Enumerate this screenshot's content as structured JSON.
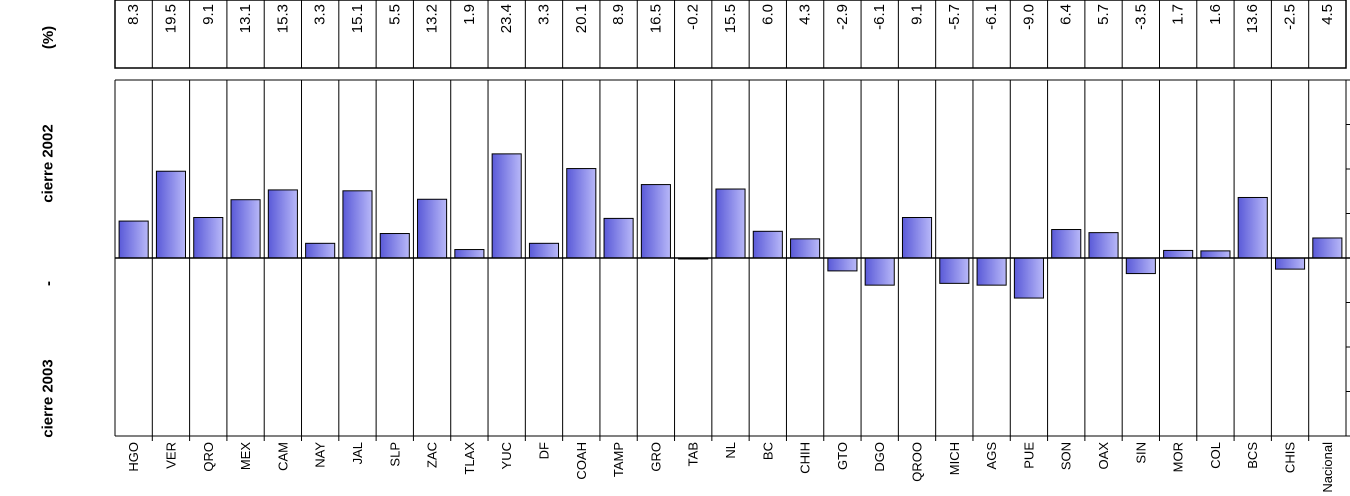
{
  "side_title": {
    "unit": "(%)",
    "top_text": "cierre 2002",
    "separator": "-",
    "bottom_text": "cierre 2003"
  },
  "chart_data": {
    "type": "bar",
    "title": "",
    "xlabel": "",
    "ylabel": "",
    "grid": false,
    "legend": "none",
    "bar_color": "#8888e8",
    "bar_edge_color": "#000000",
    "ylim": [
      -40,
      40
    ],
    "categories": [
      "HGO",
      "VER",
      "QRO",
      "MEX",
      "CAM",
      "NAY",
      "JAL",
      "SLP",
      "ZAC",
      "TLAX",
      "YUC",
      "DF",
      "COAH",
      "TAMP",
      "GRO",
      "TAB",
      "NL",
      "BC",
      "CHIH",
      "GTO",
      "DGO",
      "QROO",
      "MICH",
      "AGS",
      "PUE",
      "SON",
      "OAX",
      "SIN",
      "MOR",
      "COL",
      "BCS",
      "CHIS",
      "Nacional"
    ],
    "values": [
      8.3,
      19.5,
      9.1,
      13.1,
      15.3,
      3.3,
      15.1,
      5.5,
      13.2,
      1.9,
      23.4,
      3.3,
      20.1,
      8.9,
      16.5,
      -0.2,
      15.5,
      6.0,
      4.3,
      -2.9,
      -6.1,
      9.1,
      -5.7,
      -6.1,
      -9.0,
      6.4,
      5.7,
      -3.5,
      1.7,
      1.6,
      13.6,
      -2.5,
      4.5
    ],
    "value_labels": [
      "8.3",
      "19.5",
      "9.1",
      "13.1",
      "15.3",
      "3.3",
      "15.1",
      "5.5",
      "13.2",
      "1.9",
      "23.4",
      "3.3",
      "20.1",
      "8.9",
      "16.5",
      "-0.2",
      "15.5",
      "6.0",
      "4.3",
      "-2.9",
      "-6.1",
      "9.1",
      "-5.7",
      "-6.1",
      "-9.0",
      "6.4",
      "5.7",
      "-3.5",
      "1.7",
      "1.6",
      "13.6",
      "-2.5",
      "4.5"
    ]
  }
}
